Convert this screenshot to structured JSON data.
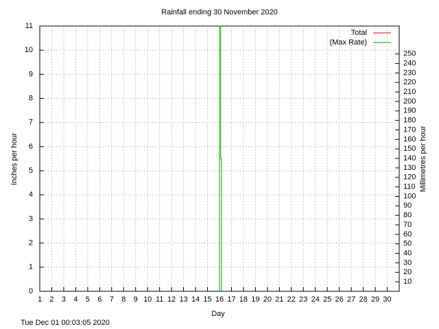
{
  "chart_data": {
    "type": "line",
    "title": "Rainfall ending 30 November 2020",
    "x_label": "Day",
    "y_label": "Inches per hour",
    "y2_label": "Millimetres per hour",
    "footer": "Tue Dec 01 00:03:05 2020",
    "xlim": [
      1,
      31
    ],
    "xticks": [
      1,
      2,
      3,
      4,
      5,
      6,
      7,
      8,
      9,
      10,
      11,
      12,
      13,
      14,
      15,
      16,
      17,
      18,
      19,
      20,
      21,
      22,
      23,
      24,
      25,
      26,
      27,
      28,
      29,
      30
    ],
    "ylim": [
      0,
      11
    ],
    "yticks": [
      0,
      1,
      2,
      3,
      4,
      5,
      6,
      7,
      8,
      9,
      10,
      11
    ],
    "y2lim": [
      0,
      279.4
    ],
    "y2ticks": [
      10,
      20,
      30,
      40,
      50,
      60,
      70,
      80,
      90,
      100,
      110,
      120,
      130,
      140,
      150,
      160,
      170,
      180,
      190,
      200,
      210,
      220,
      230,
      240,
      250
    ],
    "grid": true,
    "legend": "top-right",
    "series": [
      {
        "name": "Total",
        "color": "#ff0000",
        "x": [],
        "values": []
      },
      {
        "name": "(Max Rate)",
        "color": "#00a000",
        "x": [
          16.0,
          16.0,
          16.1,
          16.1,
          16.17,
          16.17
        ],
        "values": [
          0,
          11,
          11,
          5.5,
          5.5,
          0
        ]
      }
    ]
  }
}
